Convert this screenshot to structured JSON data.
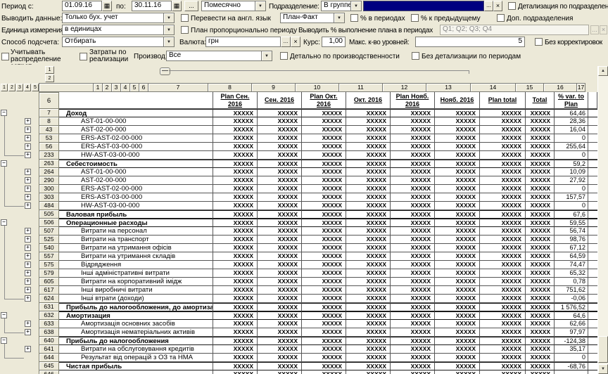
{
  "toolbar": {
    "row1": {
      "period_label": "Период с:",
      "date_from": "01.09.16",
      "po_label": "по:",
      "date_to": "30.11.16",
      "dots": "...",
      "period_type": "Помесячно",
      "subdivision_label": "Подразделение:",
      "subdivision_mode": "В группе",
      "clear": "×",
      "detail_by_subdivisions": "Детализация по подразделениям"
    },
    "row2": {
      "output_label": "Выводить данные:",
      "output_value": "Только бух. учет",
      "translate_en": "Перевести на англ. язык",
      "plan_fact": "План-Факт",
      "pct_in_periods": "% в периодах",
      "pct_to_previous": "% к предыдущему",
      "add_subdivisions": "Доп. подразделения"
    },
    "row3": {
      "unit_label": "Единица измерения:",
      "unit_value": "в единицах",
      "plan_proportional": "План пропорционально периоду",
      "show_pct_label": "Выводить % выполнение плана в периодах",
      "quarters_value": "Q1; Q2; Q3; Q4",
      "dots": "...",
      "clear": "×"
    },
    "row4": {
      "calc_label": "Способ подсчета:",
      "calc_value": "Отбирать",
      "currency_label": "Валюта:",
      "currency_value": "грн",
      "dots": "...",
      "clear": "×",
      "rate_label": "Курс:",
      "rate_value": "1,00",
      "max_levels_label": "Макс. к-во уровней:",
      "max_levels_value": "5",
      "no_adjustments": "Без корректировок"
    },
    "row5": {
      "cost_allocation": "Учитывать распределение затрат",
      "sales_costs": "Затраты по реализации",
      "production_label": "Производ:",
      "production_value": "Все",
      "detail_by_production": "Детально по производственности",
      "no_period_detail": "Без детализации по периодам"
    }
  },
  "grid": {
    "level_buttons": [
      "1",
      "2",
      "3",
      "4",
      "5"
    ],
    "corner_buttons": [
      "1",
      "2"
    ],
    "column_numbers": [
      "1",
      "2",
      "3",
      "4",
      "5",
      "6",
      "7",
      "8",
      "9",
      "10",
      "11",
      "12",
      "13",
      "14",
      "15",
      "16",
      "17"
    ],
    "header_row_number": "6",
    "column_titles": [
      "Plan Сен. 2016",
      "Сен. 2016",
      "Plan Окт. 2016",
      "Окт. 2016",
      "Plan Нояб. 2016",
      "Нояб. 2016",
      "Plan total",
      "Total",
      "% var. to Plan"
    ],
    "cell_placeholder": "XXXXX",
    "rows": [
      {
        "num": "7",
        "label": "Доход",
        "bold": true,
        "ind": 0,
        "exp": "minus",
        "rail": "start",
        "pct": "64,46",
        "cells": true
      },
      {
        "num": "8",
        "label": "AST-01-00-000",
        "bold": false,
        "ind": 1,
        "exp": "plus",
        "rail": "pass",
        "pct": "28,36",
        "cells": true
      },
      {
        "num": "43",
        "label": "AST-02-00-000",
        "bold": false,
        "ind": 1,
        "exp": "plus",
        "rail": "pass",
        "pct": "16,04",
        "cells": true
      },
      {
        "num": "53",
        "label": "ERS-AST-02-00-000",
        "bold": false,
        "ind": 1,
        "exp": "plus",
        "rail": "pass",
        "pct": "0",
        "cells": true
      },
      {
        "num": "56",
        "label": "ERS-AST-03-00-000",
        "bold": false,
        "ind": 1,
        "exp": "plus",
        "rail": "pass",
        "pct": "255,64",
        "cells": true
      },
      {
        "num": "233",
        "label": "HW-AST-03-00-000",
        "bold": false,
        "ind": 1,
        "exp": "plus",
        "rail": "end",
        "pct": "0",
        "cells": true
      },
      {
        "num": "263",
        "label": "Себестоимость",
        "bold": true,
        "ind": 0,
        "exp": "minus",
        "rail": "start",
        "pct": "59,2",
        "cells": true
      },
      {
        "num": "264",
        "label": "AST-01-00-000",
        "bold": false,
        "ind": 1,
        "exp": "plus",
        "rail": "pass",
        "pct": "10,09",
        "cells": true
      },
      {
        "num": "290",
        "label": "AST-02-00-000",
        "bold": false,
        "ind": 1,
        "exp": "plus",
        "rail": "pass",
        "pct": "27,92",
        "cells": true
      },
      {
        "num": "300",
        "label": "ERS-AST-02-00-000",
        "bold": false,
        "ind": 1,
        "exp": "plus",
        "rail": "pass",
        "pct": "0",
        "cells": true
      },
      {
        "num": "303",
        "label": "ERS-AST-03-00-000",
        "bold": false,
        "ind": 1,
        "exp": "plus",
        "rail": "pass",
        "pct": "157,57",
        "cells": true
      },
      {
        "num": "484",
        "label": "HW-AST-03-00-000",
        "bold": false,
        "ind": 1,
        "exp": "plus",
        "rail": "end",
        "pct": "0",
        "cells": true
      },
      {
        "num": "505",
        "label": "Валовая прибыль",
        "bold": true,
        "ind": 0,
        "exp": null,
        "rail": null,
        "pct": "67,6",
        "cells": true
      },
      {
        "num": "506",
        "label": "Операционные расходы",
        "bold": true,
        "ind": 0,
        "exp": "minus",
        "rail": "start",
        "pct": "59,55",
        "cells": true
      },
      {
        "num": "507",
        "label": "Витрати на персонал",
        "bold": false,
        "ind": 1,
        "exp": "plus",
        "rail": "pass",
        "pct": "56,74",
        "cells": true
      },
      {
        "num": "525",
        "label": "Витрати на транспорт",
        "bold": false,
        "ind": 1,
        "exp": "plus",
        "rail": "pass",
        "pct": "98,76",
        "cells": true
      },
      {
        "num": "540",
        "label": "Витрати на утримання офісів",
        "bold": false,
        "ind": 1,
        "exp": "plus",
        "rail": "pass",
        "pct": "67,12",
        "cells": true
      },
      {
        "num": "557",
        "label": "Витрати на утримання складів",
        "bold": false,
        "ind": 1,
        "exp": "plus",
        "rail": "pass",
        "pct": "64,59",
        "cells": true
      },
      {
        "num": "575",
        "label": "Відрядження",
        "bold": false,
        "ind": 1,
        "exp": "plus",
        "rail": "pass",
        "pct": "74,47",
        "cells": true
      },
      {
        "num": "579",
        "label": "Інші адміністративні витрати",
        "bold": false,
        "ind": 1,
        "exp": "plus",
        "rail": "pass",
        "pct": "65,32",
        "cells": true
      },
      {
        "num": "605",
        "label": "Витрати на корпоративний імідж",
        "bold": false,
        "ind": 1,
        "exp": "plus",
        "rail": "pass",
        "pct": "0,78",
        "cells": true
      },
      {
        "num": "617",
        "label": "Інші виробничі витрати",
        "bold": false,
        "ind": 1,
        "exp": "plus",
        "rail": "pass",
        "pct": "751,62",
        "cells": true
      },
      {
        "num": "624",
        "label": "Інші втрати (доходи)",
        "bold": false,
        "ind": 1,
        "exp": "plus",
        "rail": "end",
        "pct": "-0,06",
        "cells": true
      },
      {
        "num": "631",
        "label": "Прибыль до налогообложения, до амортизации",
        "bold": true,
        "ind": 0,
        "exp": null,
        "rail": null,
        "pct": "1 576,52",
        "cells": true
      },
      {
        "num": "632",
        "label": "Амортизация",
        "bold": true,
        "ind": 0,
        "exp": "minus",
        "rail": "start",
        "pct": "64,6",
        "cells": true
      },
      {
        "num": "633",
        "label": "Амортизація основних засобів",
        "bold": false,
        "ind": 1,
        "exp": "plus",
        "rail": "pass",
        "pct": "62,66",
        "cells": true
      },
      {
        "num": "638",
        "label": "Амортизація нематеріальних активів",
        "bold": false,
        "ind": 1,
        "exp": "plus",
        "rail": "end",
        "pct": "97,97",
        "cells": true
      },
      {
        "num": "640",
        "label": "Прибыль до налогообложения",
        "bold": true,
        "ind": 0,
        "exp": "minus",
        "rail": "start",
        "pct": "-124,38",
        "cells": true
      },
      {
        "num": "641",
        "label": "Витрати на обслуговування кредитів",
        "bold": false,
        "ind": 1,
        "exp": "plus",
        "rail": "pass",
        "pct": "35,17",
        "cells": true
      },
      {
        "num": "644",
        "label": "Результат від операцій з ОЗ та НМА",
        "bold": false,
        "ind": 1,
        "exp": null,
        "rail": "end",
        "pct": "0",
        "cells": true
      },
      {
        "num": "645",
        "label": "Чистая прибыль",
        "bold": true,
        "ind": 0,
        "exp": null,
        "rail": null,
        "pct": "-68,76",
        "cells": true
      },
      {
        "num": "646",
        "label": "",
        "bold": false,
        "ind": 0,
        "exp": null,
        "rail": null,
        "pct": "",
        "cells": true
      }
    ]
  }
}
